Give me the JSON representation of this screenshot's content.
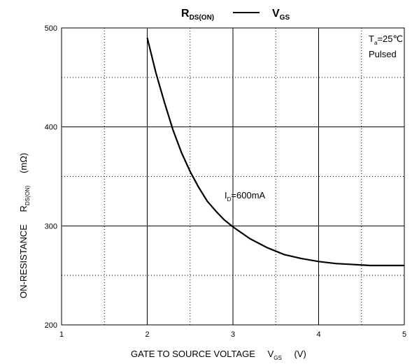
{
  "chart_data": {
    "type": "line",
    "title": {
      "left_main": "R",
      "left_sub": "DS(ON)",
      "right_main": "V",
      "right_sub": "GS"
    },
    "xlabel": {
      "main": "GATE TO SOURCE VOLTAGE",
      "var": "V",
      "var_sub": "GS",
      "unit": "(V)"
    },
    "ylabel": {
      "main": "ON-RESISTANCE",
      "var": "R",
      "var_sub": "DS(ON)",
      "unit": "(mΩ)"
    },
    "xlim": [
      1,
      5
    ],
    "ylim": [
      200,
      500
    ],
    "x_ticks": [
      "1",
      "2",
      "3",
      "4",
      "5"
    ],
    "y_ticks": [
      "200",
      "300",
      "400",
      "500"
    ],
    "grid": {
      "major": "solid",
      "minor": "dotted"
    },
    "annotations": {
      "condition_t_main": "T",
      "condition_t_sub": "a",
      "condition_t_value": "=25℃",
      "condition_pulsed": "Pulsed",
      "curve_label_main": "I",
      "curve_label_sub": "D",
      "curve_label_value": "=600mA"
    },
    "series": [
      {
        "x": [
          2.0,
          2.1,
          2.2,
          2.3,
          2.4,
          2.5,
          2.6,
          2.7,
          2.8,
          2.9,
          3.0,
          3.2,
          3.4,
          3.6,
          3.8,
          4.0,
          4.2,
          4.4,
          4.6,
          4.8,
          5.0
        ],
        "values": [
          490,
          455,
          425,
          397,
          374,
          355,
          339,
          325,
          315,
          306,
          299,
          287,
          278,
          271,
          267,
          264,
          262,
          261,
          260,
          260,
          260
        ]
      }
    ]
  }
}
